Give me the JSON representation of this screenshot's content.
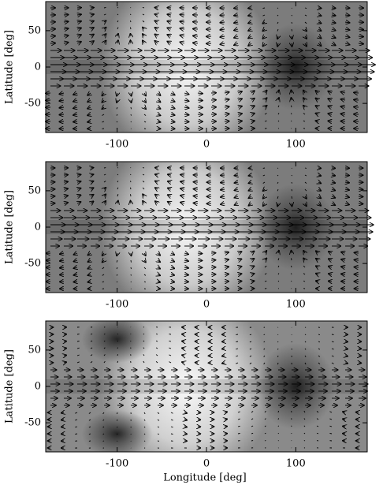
{
  "chart_data": [
    {
      "type": "quiver",
      "ylabel": "Latitude [deg]",
      "xlim": [
        -180,
        180
      ],
      "ylim": [
        -90,
        90
      ],
      "xticks": [
        -100,
        0,
        100
      ],
      "yticks": [
        -50,
        0,
        50
      ]
    },
    {
      "type": "quiver",
      "ylabel": "Latitude [deg]",
      "xlim": [
        -180,
        180
      ],
      "ylim": [
        -90,
        90
      ],
      "xticks": [
        -100,
        0,
        100
      ],
      "yticks": [
        -50,
        0,
        50
      ]
    },
    {
      "type": "quiver",
      "ylabel": "Latitude [deg]",
      "xlabel": "Longitude [deg]",
      "xlim": [
        -180,
        180
      ],
      "ylim": [
        -90,
        90
      ],
      "xticks": [
        -100,
        0,
        100
      ],
      "yticks": [
        -50,
        0,
        50
      ]
    }
  ]
}
